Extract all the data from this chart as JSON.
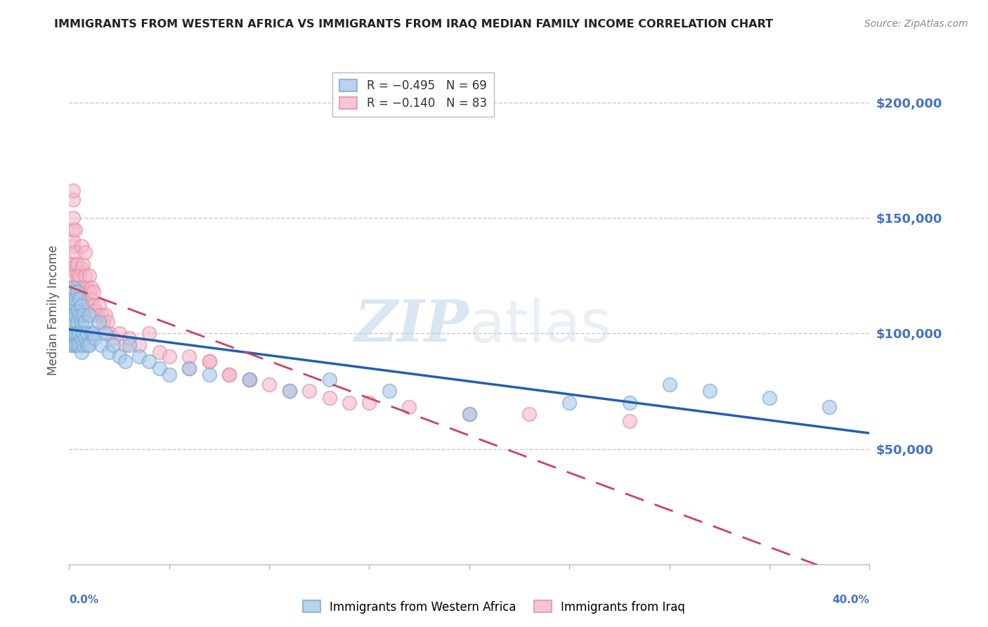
{
  "title": "IMMIGRANTS FROM WESTERN AFRICA VS IMMIGRANTS FROM IRAQ MEDIAN FAMILY INCOME CORRELATION CHART",
  "source": "Source: ZipAtlas.com",
  "ylabel": "Median Family Income",
  "right_ytick_values": [
    50000,
    100000,
    150000,
    200000
  ],
  "right_ytick_labels": [
    "$50,000",
    "$100,000",
    "$150,000",
    "$200,000"
  ],
  "xmin": 0.0,
  "xmax": 0.4,
  "ymin": 0,
  "ymax": 220000,
  "legend_r1": "R = −0.495   N = 69",
  "legend_r2": "R = −0.140   N = 83",
  "watermark_zip": "ZIP",
  "watermark_atlas": "atlas",
  "blue_color": "#a8c8e8",
  "pink_color": "#f4b8c8",
  "blue_line_color": "#2060b0",
  "pink_line_color": "#d04060",
  "blue_scatter_edge": "#7aadd4",
  "pink_scatter_edge": "#e890a8",
  "background_color": "#ffffff",
  "grid_color": "#c8c8d8",
  "title_color": "#222222",
  "right_label_color": "#4472c4",
  "bottom_label_color": "#222222",
  "source_color": "#888888",
  "wa_x": [
    0.001,
    0.001,
    0.001,
    0.001,
    0.001,
    0.001,
    0.001,
    0.002,
    0.002,
    0.002,
    0.002,
    0.002,
    0.002,
    0.002,
    0.003,
    0.003,
    0.003,
    0.003,
    0.003,
    0.004,
    0.004,
    0.004,
    0.004,
    0.004,
    0.005,
    0.005,
    0.005,
    0.005,
    0.006,
    0.006,
    0.006,
    0.006,
    0.007,
    0.007,
    0.007,
    0.008,
    0.008,
    0.009,
    0.009,
    0.01,
    0.01,
    0.011,
    0.012,
    0.013,
    0.015,
    0.016,
    0.018,
    0.02,
    0.022,
    0.025,
    0.028,
    0.03,
    0.035,
    0.04,
    0.045,
    0.05,
    0.06,
    0.07,
    0.09,
    0.11,
    0.13,
    0.16,
    0.2,
    0.25,
    0.3,
    0.35,
    0.38,
    0.32,
    0.28
  ],
  "wa_y": [
    105000,
    112000,
    98000,
    108000,
    115000,
    100000,
    95000,
    120000,
    108000,
    100000,
    95000,
    118000,
    105000,
    110000,
    112000,
    100000,
    115000,
    108000,
    95000,
    118000,
    110000,
    105000,
    100000,
    95000,
    115000,
    108000,
    100000,
    95000,
    112000,
    105000,
    98000,
    92000,
    108000,
    100000,
    95000,
    105000,
    98000,
    100000,
    95000,
    108000,
    95000,
    100000,
    100000,
    98000,
    105000,
    95000,
    100000,
    92000,
    95000,
    90000,
    88000,
    95000,
    90000,
    88000,
    85000,
    82000,
    85000,
    82000,
    80000,
    75000,
    80000,
    75000,
    65000,
    70000,
    78000,
    72000,
    68000,
    75000,
    70000
  ],
  "iraq_x": [
    0.001,
    0.001,
    0.001,
    0.001,
    0.001,
    0.001,
    0.001,
    0.001,
    0.002,
    0.002,
    0.002,
    0.002,
    0.002,
    0.002,
    0.002,
    0.003,
    0.003,
    0.003,
    0.003,
    0.003,
    0.003,
    0.004,
    0.004,
    0.004,
    0.004,
    0.004,
    0.005,
    0.005,
    0.005,
    0.005,
    0.006,
    0.006,
    0.006,
    0.006,
    0.007,
    0.007,
    0.007,
    0.008,
    0.008,
    0.008,
    0.009,
    0.009,
    0.01,
    0.01,
    0.01,
    0.011,
    0.011,
    0.012,
    0.012,
    0.013,
    0.014,
    0.015,
    0.016,
    0.017,
    0.018,
    0.019,
    0.02,
    0.022,
    0.025,
    0.028,
    0.03,
    0.035,
    0.04,
    0.045,
    0.05,
    0.06,
    0.07,
    0.08,
    0.09,
    0.1,
    0.12,
    0.14,
    0.17,
    0.2,
    0.23,
    0.28,
    0.13,
    0.11,
    0.15,
    0.09,
    0.08,
    0.07,
    0.06
  ],
  "iraq_y": [
    110000,
    125000,
    108000,
    120000,
    115000,
    130000,
    100000,
    118000,
    145000,
    158000,
    162000,
    138000,
    128000,
    150000,
    140000,
    145000,
    135000,
    130000,
    120000,
    115000,
    110000,
    130000,
    125000,
    120000,
    115000,
    108000,
    125000,
    118000,
    112000,
    108000,
    138000,
    128000,
    120000,
    115000,
    130000,
    120000,
    112000,
    135000,
    125000,
    118000,
    120000,
    112000,
    125000,
    118000,
    112000,
    120000,
    115000,
    118000,
    112000,
    110000,
    108000,
    112000,
    108000,
    105000,
    108000,
    105000,
    100000,
    98000,
    100000,
    95000,
    98000,
    95000,
    100000,
    92000,
    90000,
    85000,
    88000,
    82000,
    80000,
    78000,
    75000,
    70000,
    68000,
    65000,
    65000,
    62000,
    72000,
    75000,
    70000,
    80000,
    82000,
    88000,
    90000
  ]
}
